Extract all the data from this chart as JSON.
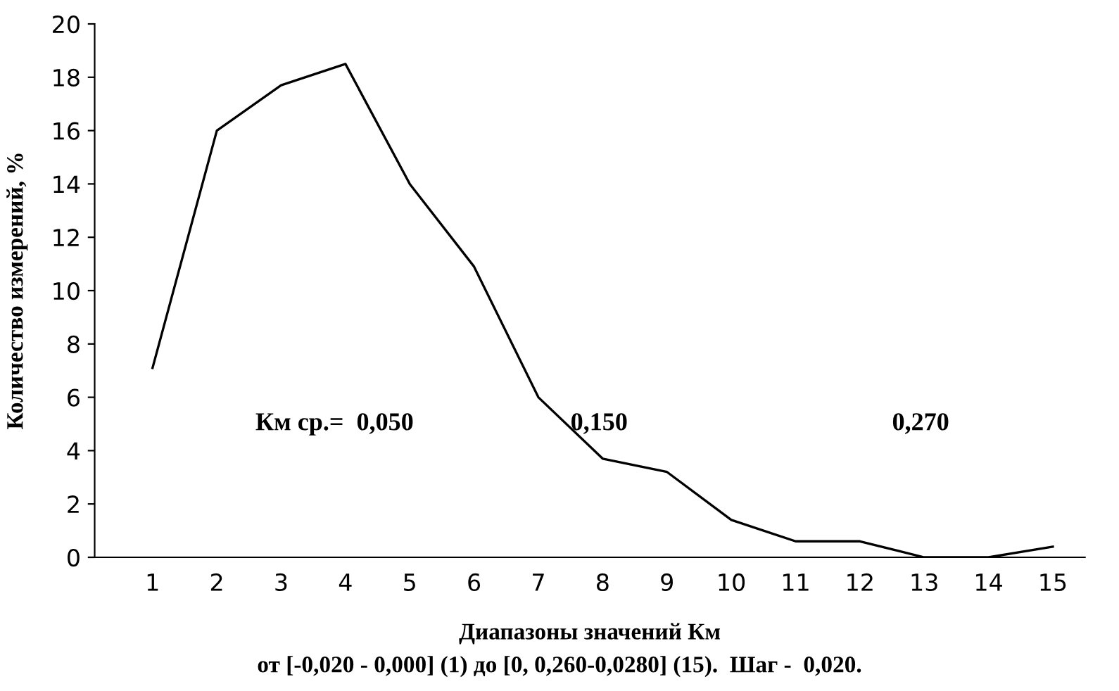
{
  "chart_data": {
    "type": "line",
    "xlabel": "Диапазоны значений Км",
    "ylabel": "Количество измерений, %",
    "categories": [
      "1",
      "2",
      "3",
      "4",
      "5",
      "6",
      "7",
      "8",
      "9",
      "10",
      "11",
      "12",
      "13",
      "14",
      "15"
    ],
    "series": [
      {
        "color": "#000000",
        "values": [
          7.1,
          16.0,
          17.7,
          18.5,
          14.0,
          10.9,
          6.0,
          3.7,
          3.2,
          1.4,
          0.6,
          0.6,
          0,
          0,
          0.4
        ]
      }
    ],
    "ylim": [
      0,
      20
    ],
    "yticks": [
      0,
      2,
      4,
      6,
      8,
      10,
      12,
      14,
      16,
      18,
      20
    ],
    "grid": false,
    "legend": false,
    "marker": "none",
    "line_style": "solid",
    "annotations": [
      "Км ср.=  0,050",
      "0,150",
      "0,270",
      "от [-0,020 - 0,000] (1) до [0, 0,260-0,0280] (15).  Шаг -  0,020."
    ]
  }
}
